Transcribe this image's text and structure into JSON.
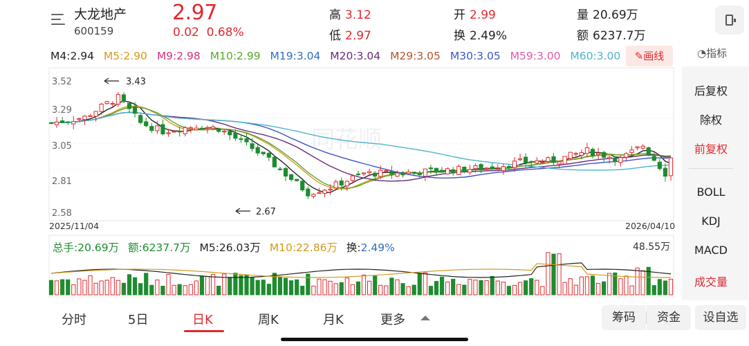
{
  "header": {
    "stock_name": "大龙地产",
    "stock_code": "600159",
    "price": "2.97",
    "change": "0.02",
    "change_pct": "0.68%",
    "high_label": "高",
    "high": "3.12",
    "low_label": "低",
    "low": "2.97",
    "open_label": "开",
    "open": "2.99",
    "turnover_label": "换",
    "turnover": "2.49%",
    "volume_label": "量",
    "volume": "20.69万",
    "amount_label": "额",
    "amount": "6237.7万"
  },
  "ma_row": {
    "items": [
      {
        "text": "M4:2.94",
        "color": "#222222"
      },
      {
        "text": "M5:2.90",
        "color": "#d39a1b"
      },
      {
        "text": "M9:2.98",
        "color": "#d6337a"
      },
      {
        "text": "M10:2.99",
        "color": "#5aa52f"
      },
      {
        "text": "M19:3.04",
        "color": "#2f6fc1"
      },
      {
        "text": "M20:3.04",
        "color": "#6a2a7e"
      },
      {
        "text": "M29:3.05",
        "color": "#b5552a"
      },
      {
        "text": "M30:3.05",
        "color": "#3b56c7"
      },
      {
        "text": "M59:3.00",
        "color": "#e05aa8"
      },
      {
        "text": "M60:3.00",
        "color": "#4fb3c9"
      }
    ],
    "draw_label": "画线",
    "indicator_label": "指标"
  },
  "chart": {
    "y_ticks": [
      "3.52",
      "3.29",
      "3.05",
      "2.81",
      "2.58"
    ],
    "y_tick_values": [
      3.52,
      3.29,
      3.05,
      2.81,
      2.58
    ],
    "start_date": "2025/11/04",
    "end_date": "2026/04/10",
    "high_marker": "3.43",
    "low_marker": "2.67",
    "watermark": "同花顺"
  },
  "volume_info": {
    "total_hand": "总手:20.69万",
    "amount": "额:6237.7万",
    "m5": "M5:26.03万",
    "m10": "M10:22.86万",
    "turnover_label": "换:",
    "turnover": "2.49%",
    "max": "48.55万"
  },
  "side_panel": {
    "items": [
      "后复权",
      "除权",
      "前复权",
      "BOLL",
      "KDJ",
      "MACD",
      "成交量"
    ],
    "active": "前复权"
  },
  "tabs": {
    "items": [
      "分时",
      "5日",
      "日K",
      "周K",
      "月K",
      "更多"
    ],
    "active": "日K"
  },
  "bottom_buttons": {
    "chips": [
      "筹码",
      "资金"
    ],
    "custom": "设自选"
  },
  "colors": {
    "up": "#e0282e",
    "down": "#1e8c2f"
  }
}
